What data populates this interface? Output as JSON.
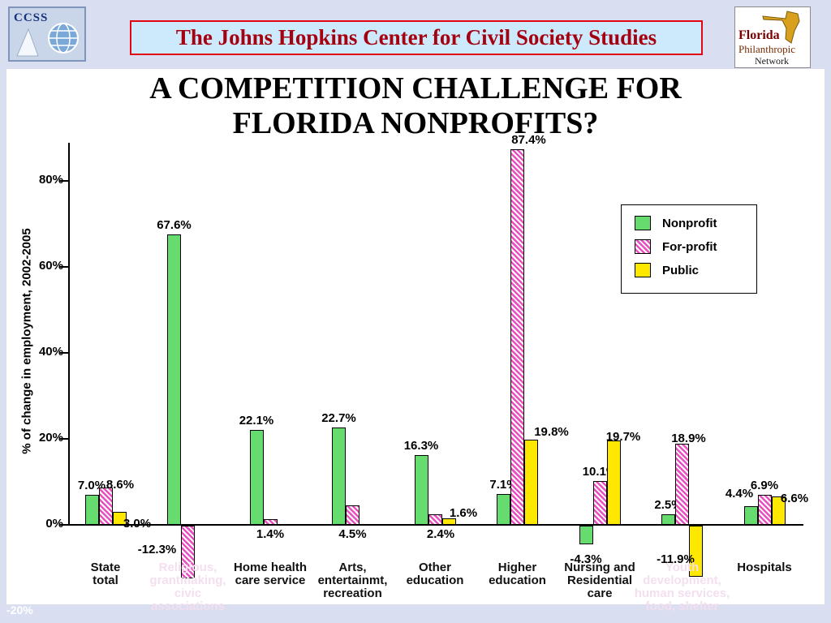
{
  "header": {
    "ccss_text": "CCSS",
    "banner_title": "The Johns Hopkins Center for Civil Society Studies",
    "fpn_line1": "Florida",
    "fpn_line2": "Philanthropic",
    "fpn_line3": "Network"
  },
  "title": {
    "line1": "A COMPETITION CHALLENGE FOR",
    "line2": "FLORIDA NONPROFITS?"
  },
  "chart_data": {
    "type": "bar",
    "title": "A COMPETITION CHALLENGE FOR FLORIDA NONPROFITS?",
    "ylabel": "% of change in employment, 2002-2005",
    "ylim": [
      -20,
      95
    ],
    "grid": false,
    "legend_position": "top-right",
    "yticks": [
      {
        "v": 0,
        "label": "0%"
      },
      {
        "v": 20,
        "label": "20%"
      },
      {
        "v": 40,
        "label": "40%"
      },
      {
        "v": 60,
        "label": "60%"
      },
      {
        "v": 80,
        "label": "80%"
      }
    ],
    "bottom_tick_label": "-20%",
    "categories": [
      {
        "lines": [
          "State",
          "total"
        ],
        "muted": false
      },
      {
        "lines": [
          "Religious,",
          "grantmaking,",
          "civic",
          "associations"
        ],
        "muted": true
      },
      {
        "lines": [
          "Home health",
          "care service"
        ],
        "muted": false
      },
      {
        "lines": [
          "Arts,",
          "entertainmt,",
          "recreation"
        ],
        "muted": false
      },
      {
        "lines": [
          "Other",
          "education"
        ],
        "muted": false
      },
      {
        "lines": [
          "Higher",
          "education"
        ],
        "muted": false
      },
      {
        "lines": [
          "Nursing and",
          "Residential",
          "care"
        ],
        "muted": false
      },
      {
        "lines": [
          "Youth",
          "development,",
          "human services,",
          "food, shelter"
        ],
        "muted": true
      },
      {
        "lines": [
          "Hospitals"
        ],
        "muted": false
      }
    ],
    "series": [
      {
        "name": "Nonprofit",
        "color": "#66dc6e",
        "hatch": false,
        "values": [
          7.0,
          67.6,
          22.1,
          22.7,
          16.3,
          7.1,
          -4.3,
          2.5,
          4.4
        ]
      },
      {
        "name": "For-profit",
        "color": "#e94fc0",
        "hatch": true,
        "values": [
          8.6,
          -12.3,
          1.4,
          4.5,
          2.4,
          87.4,
          10.1,
          18.9,
          6.9
        ]
      },
      {
        "name": "Public",
        "color": "#ffe800",
        "hatch": false,
        "values": [
          3.0,
          null,
          null,
          null,
          1.6,
          19.8,
          19.7,
          -11.9,
          6.6
        ]
      }
    ]
  }
}
